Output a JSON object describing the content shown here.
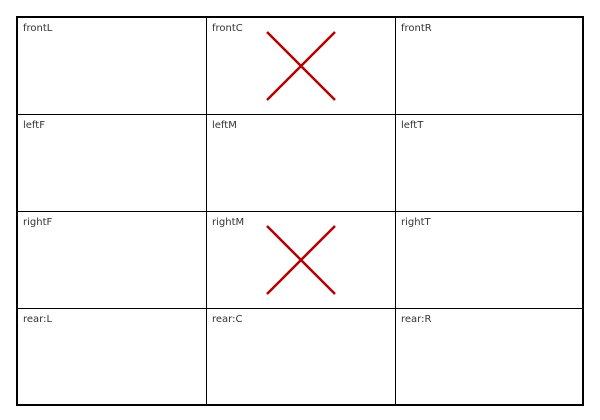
{
  "colors": {
    "border": "#000000",
    "label": "#333333",
    "cross": "#b30000"
  },
  "grid": {
    "rows": [
      {
        "cells": [
          {
            "label": "frontL",
            "marked": false
          },
          {
            "label": "frontC",
            "marked": true,
            "mark_icon": "x-mark-icon"
          },
          {
            "label": "frontR",
            "marked": false
          }
        ]
      },
      {
        "cells": [
          {
            "label": "leftF",
            "marked": false
          },
          {
            "label": "leftM",
            "marked": false
          },
          {
            "label": "leftT",
            "marked": false
          }
        ]
      },
      {
        "cells": [
          {
            "label": "rightF",
            "marked": false
          },
          {
            "label": "rightM",
            "marked": true,
            "mark_icon": "x-mark-icon"
          },
          {
            "label": "rightT",
            "marked": false
          }
        ]
      },
      {
        "cells": [
          {
            "label": "rear:L",
            "marked": false
          },
          {
            "label": "rear:C",
            "marked": false
          },
          {
            "label": "rear:R",
            "marked": false
          }
        ]
      }
    ]
  }
}
